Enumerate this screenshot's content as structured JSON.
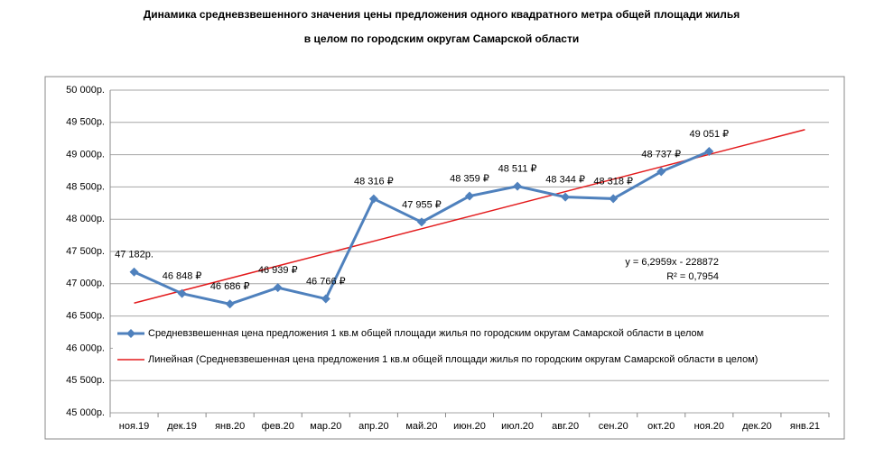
{
  "chart_data": {
    "type": "line",
    "title": [
      "Динамика средневзвешенного значения цены предложения одного квадратного метра общей площади жилья",
      "в целом по городским округам Самарской области"
    ],
    "categories": [
      "ноя.19",
      "дек.19",
      "янв.20",
      "фев.20",
      "мар.20",
      "апр.20",
      "май.20",
      "июн.20",
      "июл.20",
      "авг.20",
      "сен.20",
      "окт.20",
      "ноя.20",
      "дек.20",
      "янв.21"
    ],
    "series": [
      {
        "name": "Средневзвешенная цена предложения 1 кв.м общей площади жилья по городским округам Самарской области в целом",
        "color": "#4f81bd",
        "values": [
          47182,
          46848,
          46686,
          46939,
          46766,
          48316,
          47955,
          48359,
          48511,
          48344,
          48318,
          48737,
          49051,
          null,
          null
        ],
        "value_labels": [
          "47 182р.",
          "46 848 ₽",
          "46 686 ₽",
          "46 939 ₽",
          "46 766 ₽",
          "48 316 ₽",
          "47 955 ₽",
          "48 359 ₽",
          "48 511 ₽",
          "48 344 ₽",
          "48 318 ₽",
          "48 737 ₽",
          "49 051 ₽",
          null,
          null
        ]
      },
      {
        "name": "Линейная (Средневзвешенная цена предложения 1 кв.м общей площади жилья по городским округам Самарской области в целом)",
        "color": "#e31a1c",
        "values": [
          46700,
          46892,
          47084,
          47276,
          47468,
          47660,
          47852,
          48044,
          48236,
          48428,
          48620,
          48812,
          49004,
          49196,
          49388
        ]
      }
    ],
    "annotations": [
      "y = 6,2959x - 228872",
      "R² = 0,7954"
    ],
    "ylim": [
      45000,
      50000
    ],
    "yticks": [
      {
        "value": 45000,
        "label": "45 000р."
      },
      {
        "value": 45500,
        "label": "45 500р."
      },
      {
        "value": 46000,
        "label": "46 000р."
      },
      {
        "value": 46500,
        "label": "46 500р."
      },
      {
        "value": 47000,
        "label": "47 000р."
      },
      {
        "value": 47500,
        "label": "47 500р."
      },
      {
        "value": 48000,
        "label": "48 000р."
      },
      {
        "value": 48500,
        "label": "48 500р."
      },
      {
        "value": 49000,
        "label": "49 000р."
      },
      {
        "value": 49500,
        "label": "49 500р."
      },
      {
        "value": 50000,
        "label": "50 000р."
      }
    ],
    "grid": true
  }
}
